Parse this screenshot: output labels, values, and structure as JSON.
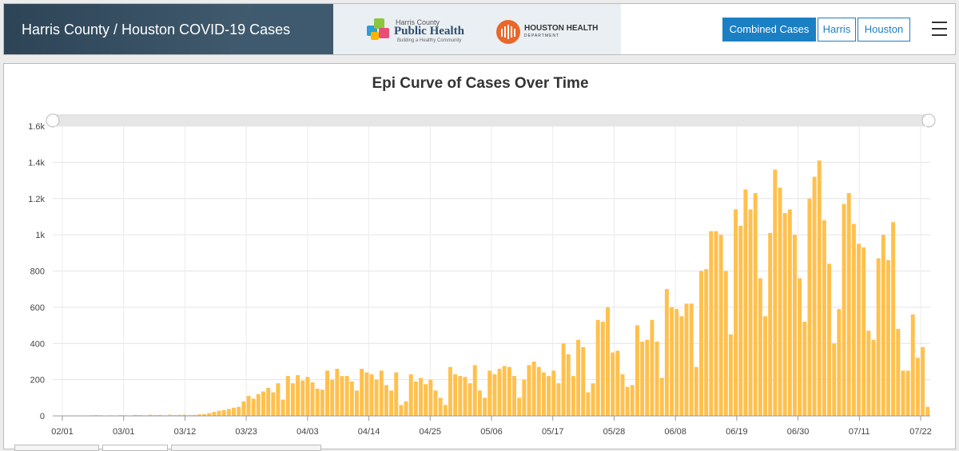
{
  "header": {
    "title": "Harris County / Houston COVID-19 Cases",
    "logos": {
      "public_health_county": "Harris County",
      "public_health_name": "Public Health",
      "public_health_tagline": "Building a Healthy Community",
      "houston_health_name": "HOUSTON HEALTH",
      "houston_health_dept": "DEPARTMENT"
    },
    "tabs": [
      {
        "label": "Combined Cases",
        "active": true
      },
      {
        "label": "Harris",
        "active": false
      },
      {
        "label": "Houston",
        "active": false
      }
    ],
    "menu_icon": "hamburger-icon"
  },
  "colors": {
    "header_bg": "#3d5669",
    "accent": "#1b7fc4",
    "bar": "#ffc04d"
  },
  "chart_data": {
    "type": "bar",
    "title": "Epi Curve of Cases Over Time",
    "xlabel": "",
    "ylabel": "",
    "ylim": [
      0,
      1600
    ],
    "yticks": [
      0,
      200,
      400,
      600,
      800,
      1000,
      1200,
      1400,
      1600
    ],
    "ytick_labels": [
      "0",
      "200",
      "400",
      "600",
      "800",
      "1k",
      "1.2k",
      "1.4k",
      "1.6k"
    ],
    "x_start": "02/01",
    "x_end": "07/22",
    "xtick_labels": [
      "02/01",
      "03/01",
      "03/12",
      "03/23",
      "04/03",
      "04/14",
      "04/25",
      "05/06",
      "05/17",
      "05/28",
      "06/08",
      "06/19",
      "06/30",
      "07/11",
      "07/22"
    ],
    "grid": true,
    "range_slider": true,
    "values": [
      2,
      2,
      1,
      1,
      2,
      2,
      1,
      3,
      4,
      3,
      2,
      3,
      2,
      4,
      3,
      2,
      5,
      4,
      3,
      6,
      4,
      5,
      3,
      6,
      4,
      5,
      6,
      4,
      5,
      8,
      10,
      15,
      22,
      28,
      32,
      38,
      45,
      50,
      80,
      110,
      95,
      120,
      135,
      155,
      130,
      180,
      90,
      220,
      180,
      225,
      195,
      215,
      185,
      150,
      145,
      250,
      200,
      260,
      220,
      220,
      190,
      140,
      260,
      240,
      230,
      200,
      250,
      170,
      140,
      240,
      60,
      80,
      230,
      190,
      210,
      175,
      200,
      140,
      100,
      60,
      270,
      230,
      220,
      215,
      180,
      280,
      140,
      100,
      250,
      230,
      260,
      275,
      270,
      220,
      100,
      200,
      280,
      300,
      270,
      240,
      220,
      250,
      180,
      400,
      340,
      220,
      420,
      380,
      130,
      180,
      530,
      520,
      600,
      350,
      360,
      230,
      160,
      170,
      500,
      410,
      420,
      530,
      410,
      210,
      700,
      600,
      590,
      550,
      620,
      620,
      270,
      800,
      810,
      1020,
      1020,
      1000,
      800,
      450,
      1140,
      1050,
      1250,
      1140,
      1230,
      760,
      550,
      1010,
      1360,
      1260,
      1120,
      1140,
      1000,
      760,
      520,
      1200,
      1320,
      1410,
      1080,
      840,
      400,
      590,
      1170,
      1230,
      1060,
      950,
      930,
      470,
      420,
      870,
      1000,
      860,
      1070,
      480,
      250,
      250,
      560,
      320,
      380,
      50
    ]
  }
}
